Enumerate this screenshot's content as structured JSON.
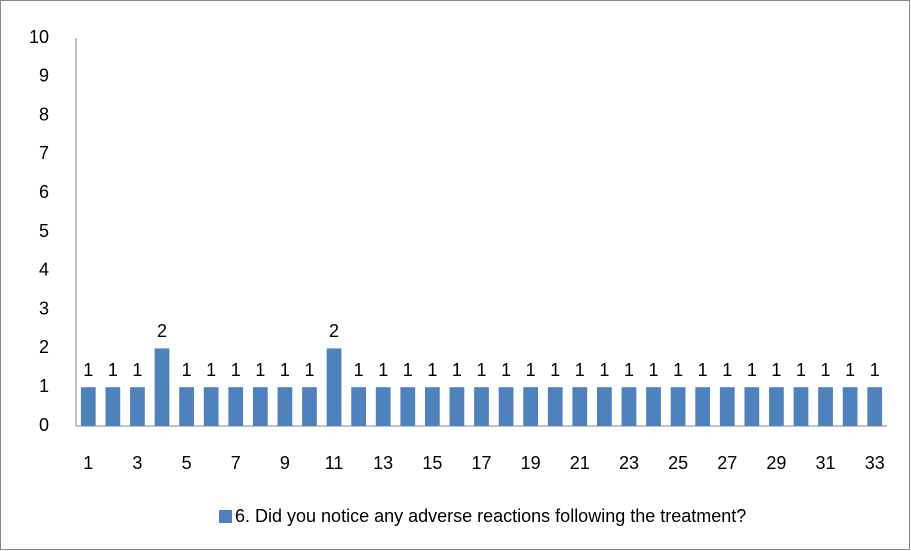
{
  "chart_data": {
    "type": "bar",
    "categories": [
      "1",
      null,
      "3",
      null,
      "5",
      null,
      "7",
      null,
      "9",
      null,
      "11",
      null,
      "13",
      null,
      "15",
      null,
      "17",
      null,
      "19",
      null,
      "21",
      null,
      "23",
      null,
      "25",
      null,
      "27",
      null,
      "29",
      null,
      "31",
      null,
      "33"
    ],
    "series": [
      {
        "name": "6. Did you notice any adverse reactions following the treatment?",
        "color": "#4f81bd",
        "values": [
          1,
          1,
          1,
          2,
          1,
          1,
          1,
          1,
          1,
          1,
          2,
          1,
          1,
          1,
          1,
          1,
          1,
          1,
          1,
          1,
          1,
          1,
          1,
          1,
          1,
          1,
          1,
          1,
          1,
          1,
          1,
          1,
          1
        ]
      }
    ],
    "ylim": [
      0,
      10
    ],
    "yticks": [
      0,
      1,
      2,
      3,
      4,
      5,
      6,
      7,
      8,
      9,
      10
    ],
    "grid": false,
    "legend": "bottom"
  }
}
